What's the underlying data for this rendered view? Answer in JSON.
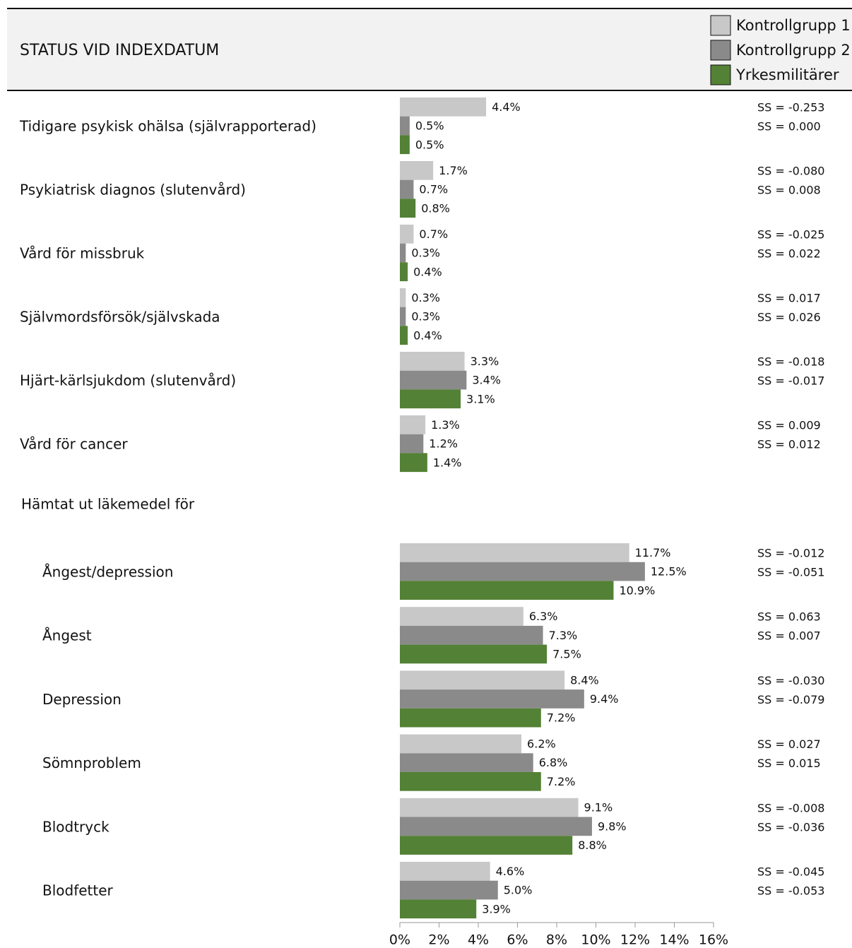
{
  "chart_data": {
    "type": "bar",
    "orientation": "horizontal",
    "title": "STATUS VID INDEXDATUM",
    "categories": [
      "Tidigare psykisk ohälsa (självrapporterad)",
      "Psykiatrisk diagnos (slutenvård)",
      "Vård för missbruk",
      "Självmordsförsök/självskada",
      "Hjärt-kärlsjukdom (slutenvård)",
      "Vård för cancer",
      "Hämtat ut läkemedel för",
      "Ångest/depression",
      "Ångest",
      "Depression",
      "Sömnproblem",
      "Blodtryck",
      "Blodfetter"
    ],
    "series": [
      {
        "name": "Kontrollgrupp 1",
        "color": "#c8c8c8",
        "values": [
          4.4,
          1.7,
          0.7,
          0.3,
          3.3,
          1.3,
          null,
          11.7,
          6.3,
          8.4,
          6.2,
          9.1,
          4.6
        ],
        "value_labels": [
          "4.4%",
          "1.7%",
          "0.7%",
          "0.3%",
          "3.3%",
          "1.3%",
          null,
          "11.7%",
          "6.3%",
          "8.4%",
          "6.2%",
          "9.1%",
          "4.6%"
        ]
      },
      {
        "name": "Kontrollgrupp 2",
        "color": "#8a8a8a",
        "values": [
          0.5,
          0.7,
          0.3,
          0.3,
          3.4,
          1.2,
          null,
          12.5,
          7.3,
          9.4,
          6.8,
          9.8,
          5.0
        ],
        "value_labels": [
          "0.5%",
          "0.7%",
          "0.3%",
          "0.3%",
          "3.4%",
          "1.2%",
          null,
          "12.5%",
          "7.3%",
          "9.4%",
          "6.8%",
          "9.8%",
          "5.0%"
        ]
      },
      {
        "name": "Yrkesmilitärer",
        "color": "#538135",
        "values": [
          0.5,
          0.8,
          0.4,
          0.4,
          3.1,
          1.4,
          null,
          10.9,
          7.5,
          7.2,
          7.2,
          8.8,
          3.9
        ],
        "value_labels": [
          "0.5%",
          "0.8%",
          "0.4%",
          "0.4%",
          "3.1%",
          "1.4%",
          null,
          "10.9%",
          "7.5%",
          "7.2%",
          "7.2%",
          "8.8%",
          "3.9%"
        ]
      }
    ],
    "ss_labels": [
      [
        "SS = -0.253",
        "SS = 0.000"
      ],
      [
        "SS = -0.080",
        "SS = 0.008"
      ],
      [
        "SS = -0.025",
        "SS = 0.022"
      ],
      [
        "SS = 0.017",
        "SS = 0.026"
      ],
      [
        "SS = -0.018",
        "SS = -0.017"
      ],
      [
        "SS = 0.009",
        "SS = 0.012"
      ],
      null,
      [
        "SS = -0.012",
        "SS = -0.051"
      ],
      [
        "SS = 0.063",
        "SS = 0.007"
      ],
      [
        "SS = -0.030",
        "SS = -0.079"
      ],
      [
        "SS = 0.027",
        "SS = 0.015"
      ],
      [
        "SS = -0.008",
        "SS = -0.036"
      ],
      [
        "SS = -0.045",
        "SS = -0.053"
      ]
    ],
    "xlim": [
      0,
      16
    ],
    "xticks": [
      {
        "value": 0,
        "label": "0%"
      },
      {
        "value": 2,
        "label": "2%"
      },
      {
        "value": 4,
        "label": "4%"
      },
      {
        "value": 6,
        "label": "6%"
      },
      {
        "value": 8,
        "label": "8%"
      },
      {
        "value": 10,
        "label": "10%"
      },
      {
        "value": 12,
        "label": "12%"
      },
      {
        "value": 14,
        "label": "14%"
      },
      {
        "value": 16,
        "label": "16%"
      }
    ],
    "legend": "top-right",
    "grid": false
  }
}
